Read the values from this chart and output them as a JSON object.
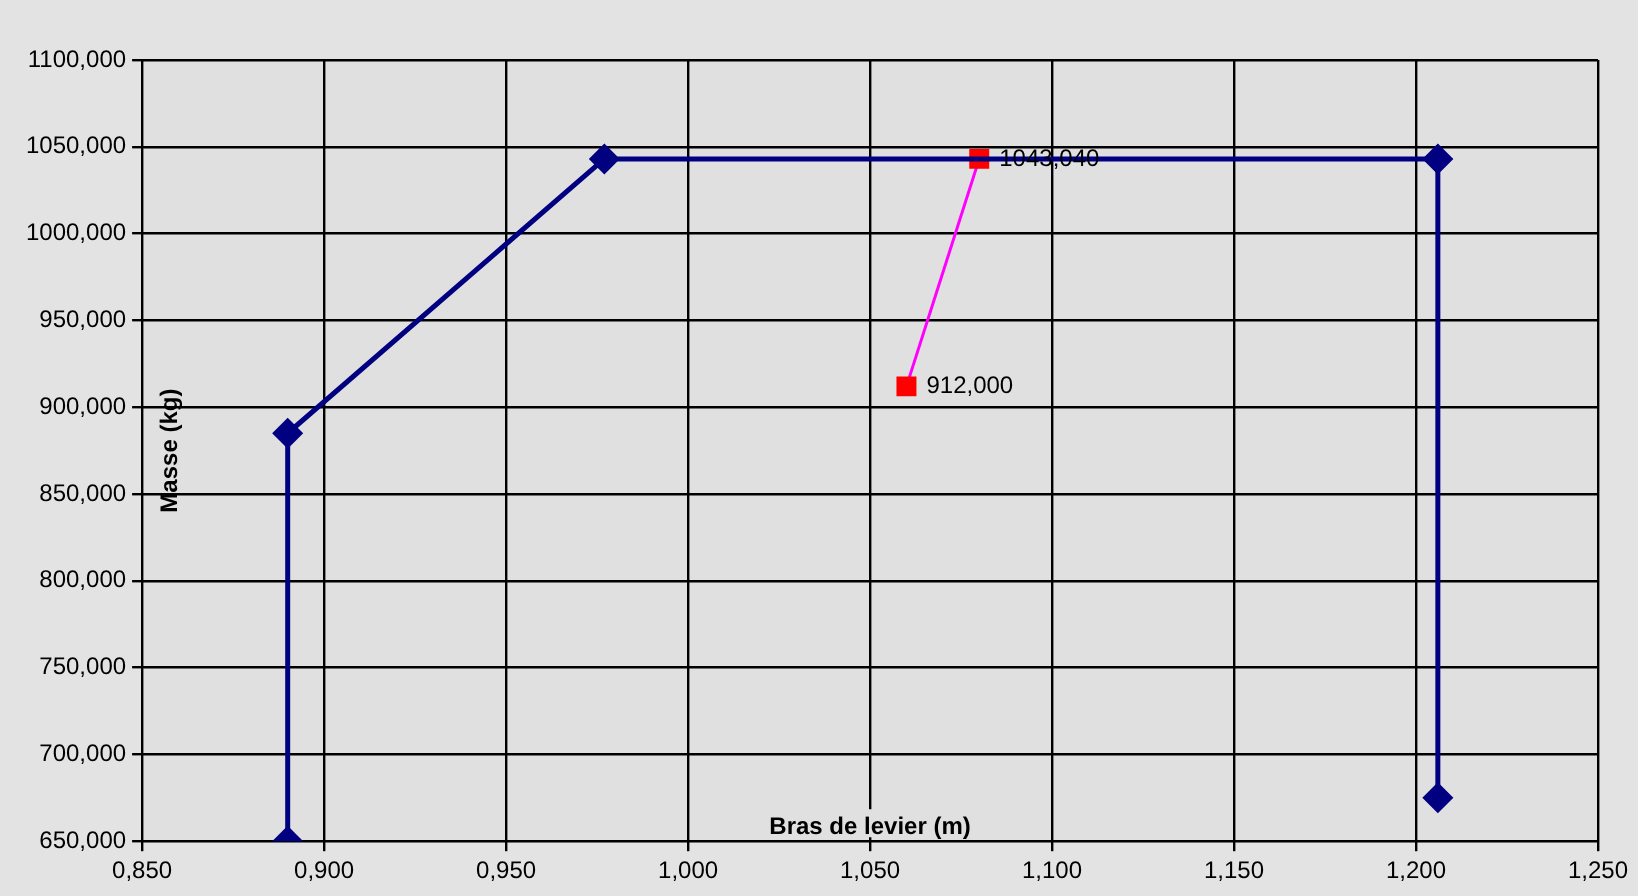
{
  "chart_data": {
    "type": "line",
    "xlabel": "Bras de levier (m)",
    "ylabel": "Masse (kg)",
    "series": [
      {
        "color": "#000080",
        "marker": "diamond",
        "x": [
          0.89,
          0.89,
          0.977,
          1.206,
          1.206
        ],
        "values": [
          650,
          885,
          1043,
          1043,
          675
        ]
      },
      {
        "color": "#ff00ff",
        "colors": [
          "#ff0000",
          "#ff0000"
        ],
        "marker": "square",
        "x": [
          1.08,
          1.06
        ],
        "values": [
          1043.04,
          912
        ],
        "value_labels": [
          "1043,040",
          "912,000"
        ]
      }
    ],
    "xlim": [
      0.85,
      1.25
    ],
    "xticks": [
      {
        "value": 0.85,
        "label": "0,850"
      },
      {
        "value": 0.9,
        "label": "0,900"
      },
      {
        "value": 0.95,
        "label": "0,950"
      },
      {
        "value": 1.0,
        "label": "1,000"
      },
      {
        "value": 1.05,
        "label": "1,050"
      },
      {
        "value": 1.1,
        "label": "1,100"
      },
      {
        "value": 1.15,
        "label": "1,150"
      },
      {
        "value": 1.2,
        "label": "1,200"
      },
      {
        "value": 1.25,
        "label": "1,250"
      }
    ],
    "ylim": [
      650,
      1100
    ],
    "yticks": [
      {
        "value": 650,
        "label": "650,000"
      },
      {
        "value": 700,
        "label": "700,000"
      },
      {
        "value": 750,
        "label": "750,000"
      },
      {
        "value": 800,
        "label": "800,000"
      },
      {
        "value": 850,
        "label": "850,000"
      },
      {
        "value": 900,
        "label": "900,000"
      },
      {
        "value": 950,
        "label": "950,000"
      },
      {
        "value": 1000,
        "label": "1000,000"
      },
      {
        "value": 1050,
        "label": "1050,000"
      },
      {
        "value": 1100,
        "label": "1100,000"
      }
    ],
    "grid": true,
    "legend": false
  }
}
